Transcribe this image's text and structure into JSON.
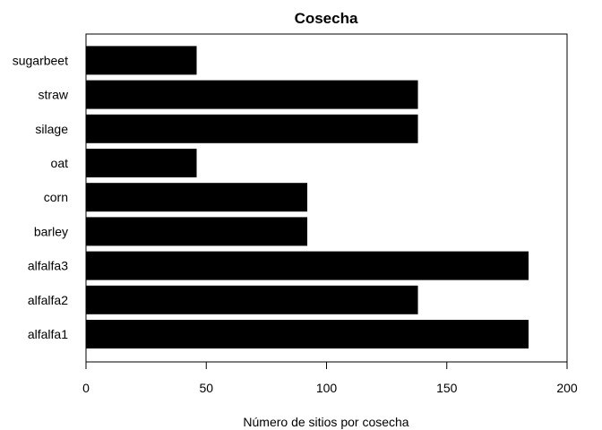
{
  "chart_data": {
    "type": "bar",
    "orientation": "horizontal",
    "title": "Cosecha",
    "xlabel": "Número de sitios por cosecha",
    "ylabel": "",
    "categories": [
      "alfalfa1",
      "alfalfa2",
      "alfalfa3",
      "barley",
      "corn",
      "oat",
      "silage",
      "straw",
      "sugarbeet"
    ],
    "values": [
      184,
      138,
      184,
      92,
      92,
      46,
      138,
      138,
      46
    ],
    "xlim": [
      0,
      200
    ],
    "xticks": [
      "0",
      "50",
      "100",
      "150",
      "200"
    ],
    "bar_color": "#000000",
    "grid": false,
    "legend": "none"
  }
}
